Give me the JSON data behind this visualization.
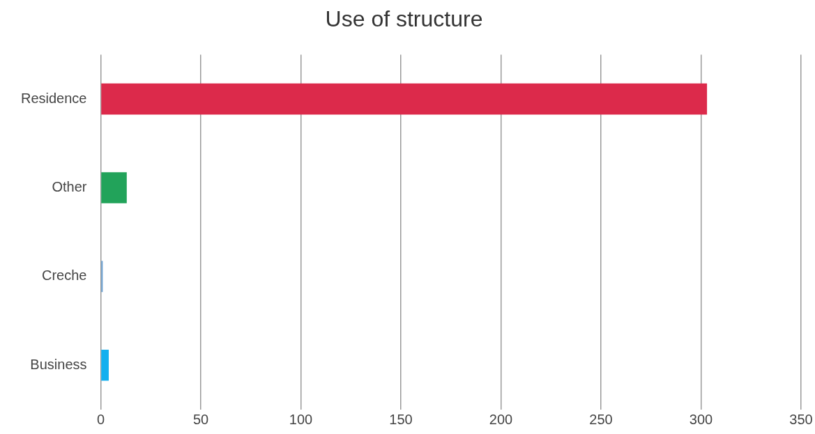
{
  "chart_data": {
    "type": "bar",
    "title": "Use of structure",
    "orientation": "horizontal",
    "categories": [
      "Residence",
      "Other",
      "Creche",
      "Business"
    ],
    "values": [
      303,
      13,
      1,
      4
    ],
    "colors": [
      "#dc2a4b",
      "#22a35a",
      "#6a9fd0",
      "#14b0ef"
    ],
    "xlim": [
      0,
      350
    ],
    "xticks": [
      0,
      50,
      100,
      150,
      200,
      250,
      300,
      350
    ],
    "grid": "x"
  }
}
